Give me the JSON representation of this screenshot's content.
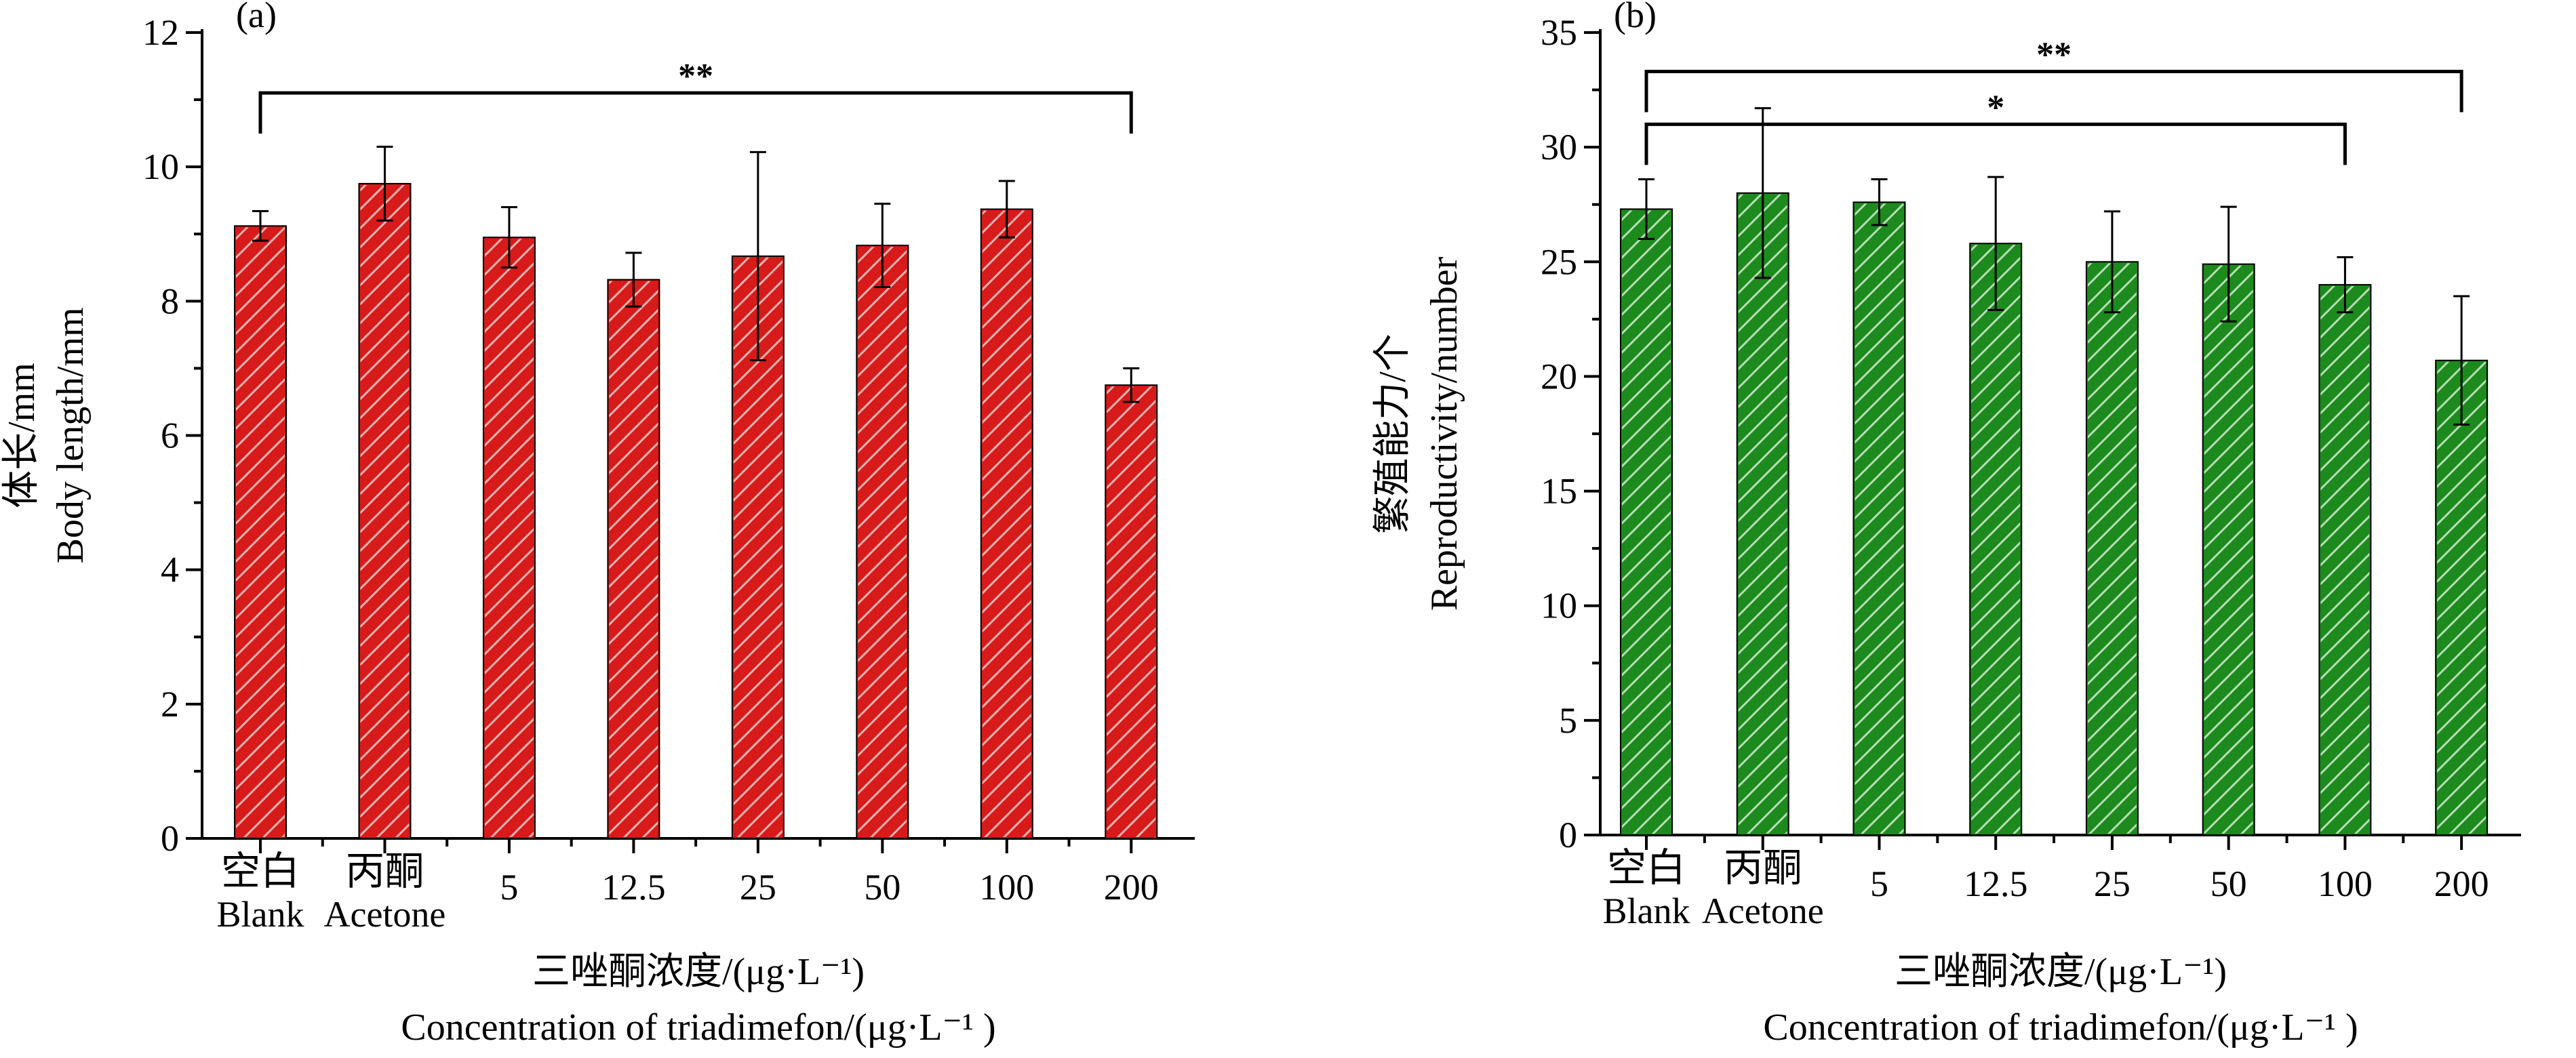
{
  "chart_data": [
    {
      "type": "bar",
      "panel_label": "(a)",
      "categories": [
        [
          "空白",
          "Blank"
        ],
        [
          "丙酮",
          "Acetone"
        ],
        [
          "5"
        ],
        [
          "12.5"
        ],
        [
          "25"
        ],
        [
          "50"
        ],
        [
          "100"
        ],
        [
          "200"
        ]
      ],
      "values": [
        9.12,
        9.75,
        8.95,
        8.32,
        8.67,
        8.83,
        9.37,
        6.75
      ],
      "errors": [
        0.22,
        0.55,
        0.45,
        0.4,
        1.55,
        0.62,
        0.42,
        0.25
      ],
      "ylabel": [
        "体长/mm",
        "Body length/mm"
      ],
      "xlabel": [
        "三唑酮浓度/(μg·L⁻¹)",
        "Concentration of triadimefon/(μg·L⁻¹ )"
      ],
      "ylim": [
        0,
        12
      ],
      "yticks": [
        0,
        2,
        4,
        6,
        8,
        10,
        12
      ],
      "bar_color": "#d71a1a",
      "hatch_color": "#f3b3b3",
      "significance": [
        {
          "from": 0,
          "to": 7,
          "label": "**",
          "y": 11.1
        }
      ]
    },
    {
      "type": "bar",
      "panel_label": "(b)",
      "categories": [
        [
          "空白",
          "Blank"
        ],
        [
          "丙酮",
          "Acetone"
        ],
        [
          "5"
        ],
        [
          "12.5"
        ],
        [
          "25"
        ],
        [
          "50"
        ],
        [
          "100"
        ],
        [
          "200"
        ]
      ],
      "values": [
        27.3,
        28.0,
        27.6,
        25.8,
        25.0,
        24.9,
        24.0,
        20.7
      ],
      "errors": [
        1.3,
        3.7,
        1.0,
        2.9,
        2.2,
        2.5,
        1.2,
        2.8
      ],
      "ylabel": [
        "繁殖能力/个",
        "Reproductivity/number"
      ],
      "xlabel": [
        "三唑酮浓度/(μg·L⁻¹)",
        "Concentration of triadimefon/(μg·L⁻¹ )"
      ],
      "ylim": [
        0,
        35
      ],
      "yticks": [
        0,
        5,
        10,
        15,
        20,
        25,
        30,
        35
      ],
      "bar_color": "#1c8a1c",
      "hatch_color": "#b6dcb6",
      "significance": [
        {
          "from": 0,
          "to": 7,
          "label": "**",
          "y": 33.3
        },
        {
          "from": 0,
          "to": 6,
          "label": "*",
          "y": 31.0
        }
      ]
    }
  ]
}
